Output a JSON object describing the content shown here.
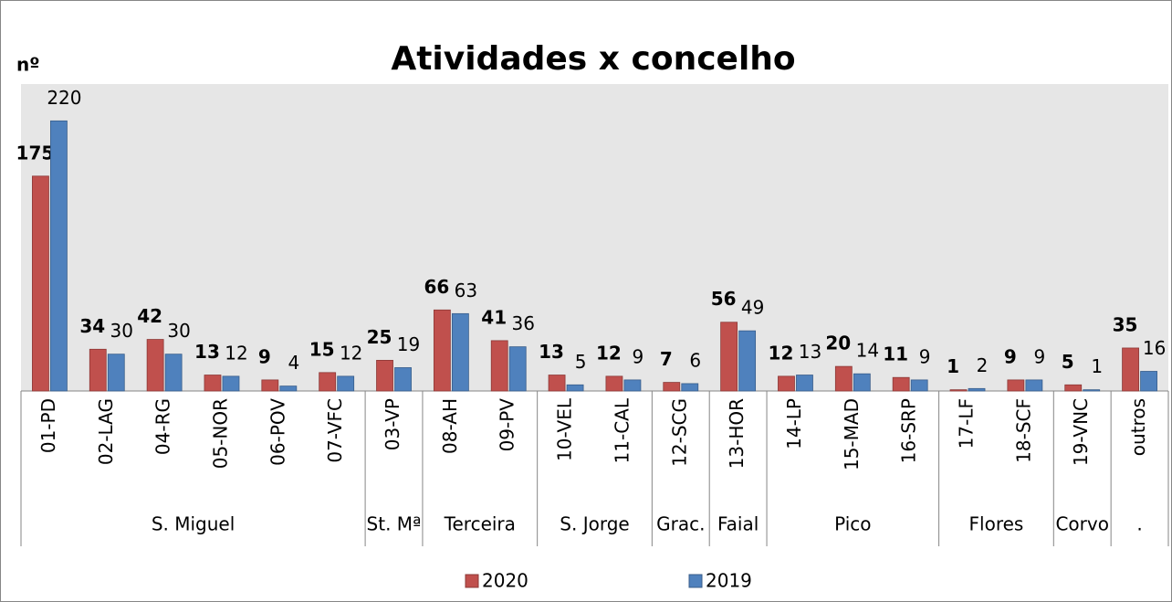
{
  "chart_data": {
    "type": "bar",
    "title": "Atividades x concelho",
    "y_label": "nº",
    "groups": [
      {
        "name": "S. Miguel",
        "categories": [
          "01-PD",
          "02-LAG",
          "04-RG",
          "05-NOR",
          "06-POV",
          "07-VFC"
        ]
      },
      {
        "name": "St. Mª",
        "categories": [
          "03-VP"
        ]
      },
      {
        "name": "Terceira",
        "categories": [
          "08-AH",
          "09-PV"
        ]
      },
      {
        "name": "S. Jorge",
        "categories": [
          "10-VEL",
          "11-CAL"
        ]
      },
      {
        "name": "Grac.",
        "categories": [
          "12-SCG"
        ]
      },
      {
        "name": "Faial",
        "categories": [
          "13-HOR"
        ]
      },
      {
        "name": "Pico",
        "categories": [
          "14-LP",
          "15-MAD",
          "16-SRP"
        ]
      },
      {
        "name": "Flores",
        "categories": [
          "17-LF",
          "18-SCF"
        ]
      },
      {
        "name": "Corvo",
        "categories": [
          "19-VNC"
        ]
      },
      {
        "name": ".",
        "categories": [
          "outros"
        ]
      }
    ],
    "series": [
      {
        "name": "2020",
        "color": "#c0504d",
        "values": [
          175,
          34,
          42,
          13,
          9,
          15,
          25,
          66,
          41,
          13,
          12,
          7,
          56,
          12,
          20,
          11,
          1,
          9,
          5,
          35
        ]
      },
      {
        "name": "2019",
        "color": "#4f81bd",
        "values": [
          220,
          30,
          30,
          12,
          4,
          12,
          19,
          63,
          36,
          5,
          9,
          6,
          49,
          13,
          14,
          9,
          2,
          9,
          1,
          16
        ]
      }
    ],
    "ylim": [
      0,
      250
    ],
    "legend": "bottom"
  }
}
